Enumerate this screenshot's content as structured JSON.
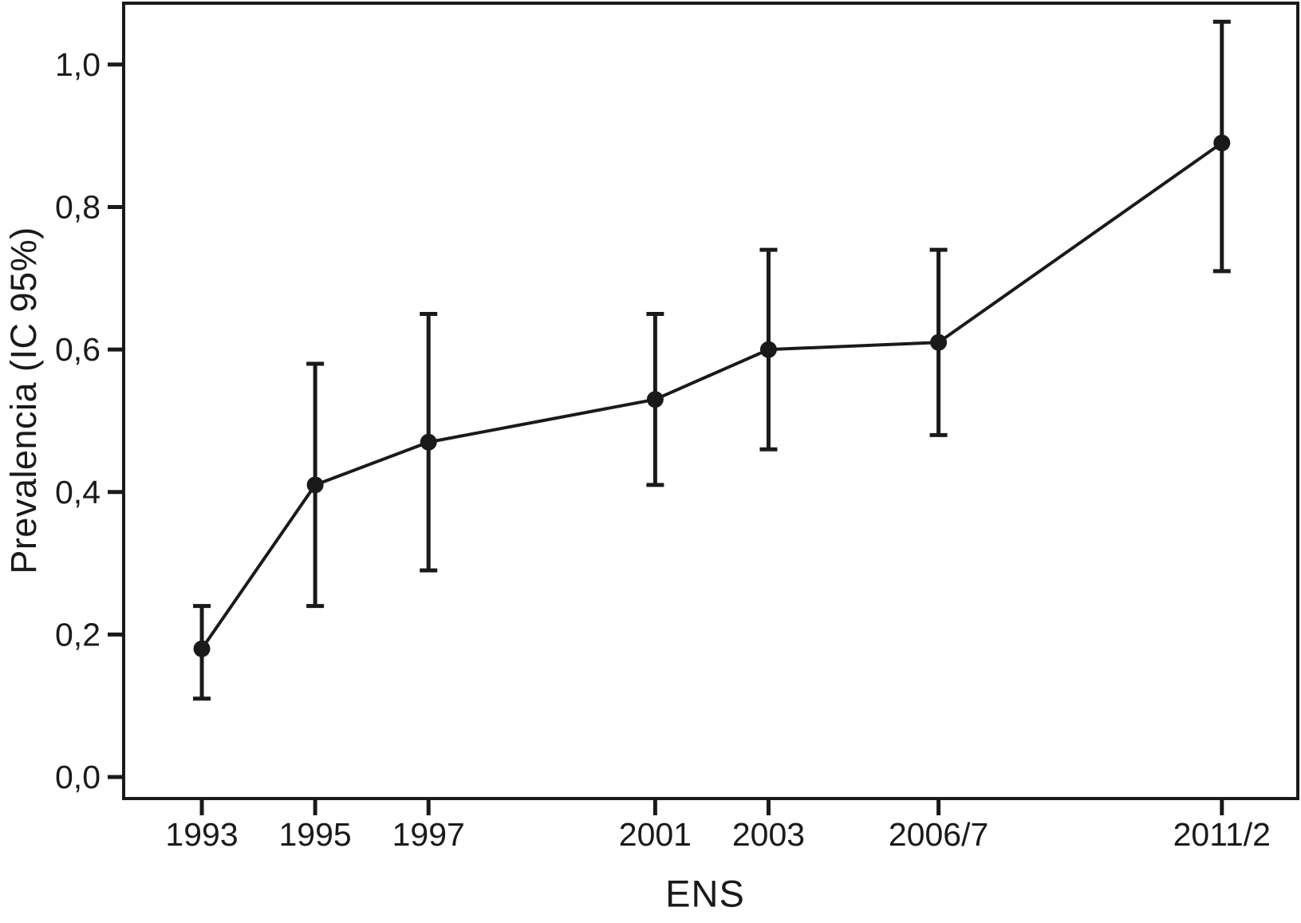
{
  "colors": {
    "foreground": "#1a1a1a",
    "background": "#ffffff"
  },
  "chart_data": {
    "type": "line",
    "title": "",
    "xlabel": "ENS",
    "ylabel": "Prevalencia (IC 95%)",
    "decimal_separator": ",",
    "grid": false,
    "legend": false,
    "error_bars": "IC 95%",
    "categories": [
      "1993",
      "1995",
      "1997",
      "2001",
      "2003",
      "2006/7",
      "2011/2"
    ],
    "series": [
      {
        "name": "Prevalencia",
        "points": [
          {
            "label": "1993",
            "year": 1993,
            "value": 0.18,
            "ci_low": 0.11,
            "ci_high": 0.24
          },
          {
            "label": "1995",
            "year": 1995,
            "value": 0.41,
            "ci_low": 0.24,
            "ci_high": 0.58
          },
          {
            "label": "1997",
            "year": 1997,
            "value": 0.47,
            "ci_low": 0.29,
            "ci_high": 0.65
          },
          {
            "label": "2001",
            "year": 2001,
            "value": 0.53,
            "ci_low": 0.41,
            "ci_high": 0.65
          },
          {
            "label": "2003",
            "year": 2003,
            "value": 0.6,
            "ci_low": 0.46,
            "ci_high": 0.74
          },
          {
            "label": "2006/7",
            "year": 2006,
            "value": 0.61,
            "ci_low": 0.48,
            "ci_high": 0.74
          },
          {
            "label": "2011/2",
            "year": 2011,
            "value": 0.89,
            "ci_low": 0.71,
            "ci_high": 1.06
          }
        ]
      }
    ],
    "y_ticks": [
      {
        "value": 0.0,
        "label": "0,0"
      },
      {
        "value": 0.2,
        "label": "0,2"
      },
      {
        "value": 0.4,
        "label": "0,4"
      },
      {
        "value": 0.6,
        "label": "0,6"
      },
      {
        "value": 0.8,
        "label": "0,8"
      },
      {
        "value": 1.0,
        "label": "1,0"
      }
    ],
    "x_range_years": [
      1991.62,
      2012.34
    ],
    "y_range": [
      -0.0302,
      1.0861
    ]
  }
}
